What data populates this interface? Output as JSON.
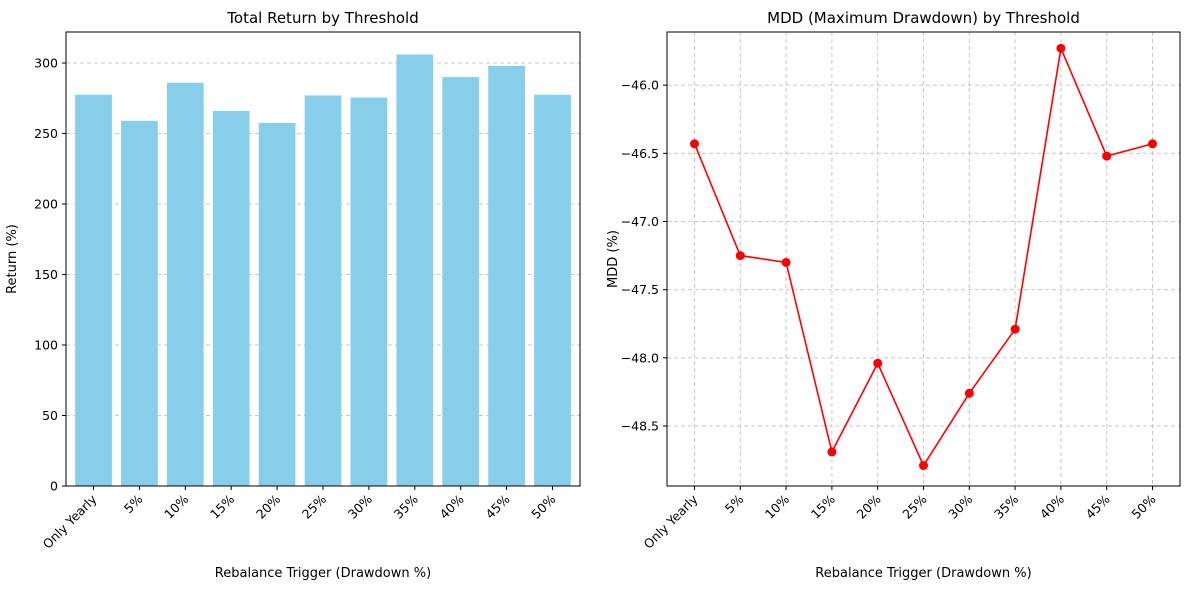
{
  "chart_data": [
    {
      "type": "bar",
      "title": "Total Return by Threshold",
      "xlabel": "Rebalance Trigger (Drawdown %)",
      "ylabel": "Return (%)",
      "categories": [
        "Only Yearly",
        "5%",
        "10%",
        "15%",
        "20%",
        "25%",
        "30%",
        "35%",
        "40%",
        "45%",
        "50%"
      ],
      "values": [
        277.5,
        259,
        286,
        266,
        257.5,
        277,
        275.5,
        306,
        290,
        298,
        277.5
      ],
      "ylim": [
        0,
        322
      ],
      "yticks": [
        0,
        50,
        100,
        150,
        200,
        250,
        300
      ],
      "grid": "y-dashed",
      "color": "#87CEEB"
    },
    {
      "type": "line",
      "title": "MDD (Maximum Drawdown) by Threshold",
      "xlabel": "Rebalance Trigger (Drawdown %)",
      "ylabel": "MDD (%)",
      "categories": [
        "Only Yearly",
        "5%",
        "10%",
        "15%",
        "20%",
        "25%",
        "30%",
        "35%",
        "40%",
        "45%",
        "50%"
      ],
      "values": [
        -46.43,
        -47.25,
        -47.3,
        -48.69,
        -48.04,
        -48.79,
        -48.26,
        -47.79,
        -45.73,
        -46.52,
        -46.43
      ],
      "ylim": [
        -48.94,
        -45.61
      ],
      "yticks": [
        -48.5,
        -48.0,
        -47.5,
        -47.0,
        -46.5,
        -46.0
      ],
      "ytick_labels": [
        "−48.5",
        "−48.0",
        "−47.5",
        "−47.0",
        "−46.5",
        "−46.0"
      ],
      "grid": "both-dashed",
      "color": "#FF0000",
      "marker": "circle"
    }
  ]
}
